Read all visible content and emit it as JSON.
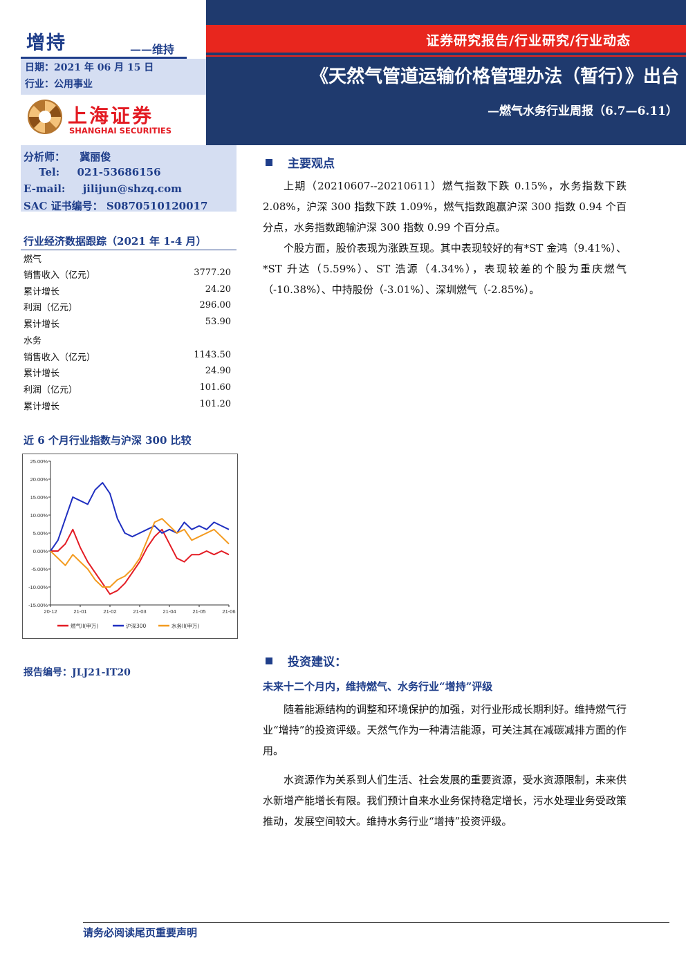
{
  "header": {
    "rating": "增持",
    "rating_action": "——维持",
    "date_line": "日期：2021 年 06 月 15 日",
    "industry_line": "行业：公用事业",
    "category": "证券研究报告/行业研究/行业动态",
    "title": "《天然气管道运输价格管理办法（暂行）》出台",
    "subtitle": "—燃气水务行业周报（6.7—6.11）"
  },
  "logo": {
    "name_cn": "上海证券",
    "name_en": "SHANGHAI SECURITIES",
    "brand_color": "#e31b23"
  },
  "analyst": {
    "label_name": "分析师：",
    "name": "冀丽俊",
    "label_tel": "Tel:",
    "tel": "021-53686156",
    "label_email": "E-mail:",
    "email": "jilijun@shzq.com",
    "label_sac": "SAC 证书编号：",
    "sac": "S0870510120017"
  },
  "econ_table": {
    "title": "行业经济数据跟踪（2021 年 1-4 月）",
    "rows": [
      {
        "label": "燃气",
        "value": ""
      },
      {
        "label": "销售收入（亿元）",
        "value": "3777.20"
      },
      {
        "label": "累计增长",
        "value": "24.20"
      },
      {
        "label": "利润（亿元）",
        "value": "296.00"
      },
      {
        "label": "累计增长",
        "value": "53.90"
      },
      {
        "label": "水务",
        "value": ""
      },
      {
        "label": "销售收入（亿元）",
        "value": "1143.50"
      },
      {
        "label": "累计增长",
        "value": "24.90"
      },
      {
        "label": "利润（亿元）",
        "value": "101.60"
      },
      {
        "label": "累计增长",
        "value": "101.20"
      }
    ]
  },
  "chart_title": "近 6 个月行业指数与沪深 300 比较",
  "chart_data": {
    "type": "line",
    "title": "",
    "xlabel": "",
    "ylabel": "",
    "ylim": [
      -15,
      25
    ],
    "y_ticks": [
      "25.00%",
      "20.00%",
      "15.00%",
      "10.00%",
      "5.00%",
      "0.00%",
      "-5.00%",
      "-10.00%",
      "-15.00%"
    ],
    "x_ticks": [
      "20-12",
      "21-01",
      "21-02",
      "21-03",
      "21-04",
      "21-05",
      "21-06"
    ],
    "x": [
      0,
      0.25,
      0.5,
      0.75,
      1,
      1.25,
      1.5,
      1.75,
      2,
      2.25,
      2.5,
      2.75,
      3,
      3.25,
      3.5,
      3.75,
      4,
      4.25,
      4.5,
      4.75,
      5,
      5.25,
      5.5,
      5.75,
      6
    ],
    "legend_position": "bottom",
    "grid": false,
    "series": [
      {
        "name": "燃气II(申万)",
        "color": "#e31b23",
        "values": [
          0,
          0,
          2,
          6,
          1,
          -3,
          -6,
          -9,
          -12,
          -11,
          -9,
          -6,
          -3,
          1,
          4,
          6,
          2,
          -2,
          -3,
          -1,
          -1,
          0,
          -1,
          0,
          -1
        ]
      },
      {
        "name": "沪深300",
        "color": "#1f2fc0",
        "values": [
          0,
          3,
          9,
          15,
          14,
          13,
          17,
          19,
          16,
          9,
          5,
          4,
          5,
          6,
          7,
          5,
          6,
          5,
          8,
          6,
          7,
          6,
          8,
          7,
          6
        ]
      },
      {
        "name": "水务II(申万)",
        "color": "#f39a1e",
        "values": [
          0,
          -2,
          -4,
          -1,
          -3,
          -5,
          -8,
          -10,
          -10,
          -8,
          -7,
          -5,
          -2,
          3,
          8,
          9,
          7,
          5,
          6,
          3,
          4,
          5,
          6,
          4,
          2
        ]
      }
    ]
  },
  "report_no": "报告编号：JLJ21-IT20",
  "main": {
    "sec1_title": "主要观点",
    "sec1_p1": "上期（20210607--20210611）燃气指数下跌 0.15%，水务指数下跌 2.08%，沪深 300 指数下跌 1.09%，燃气指数跑赢沪深 300 指数 0.94 个百分点，水务指数跑输沪深 300 指数 0.99 个百分点。",
    "sec1_p2": "个股方面，股价表现为涨跌互现。其中表现较好的有*ST 金鸿（9.41%）、*ST 升达（5.59%）、ST 浩源（4.34%），表现较差的个股为重庆燃气（-10.38%）、中持股份（-3.01%）、深圳燃气（-2.85%）。",
    "sec2_title": "投资建议：",
    "sec2_sub": "未来十二个月内，维持燃气、水务行业“增持”评级",
    "sec2_p1": "随着能源结构的调整和环境保护的加强，对行业形成长期利好。维持燃气行业“增持”的投资评级。天然气作为一种清洁能源，可关注其在减碳减排方面的作用。",
    "sec2_p2": "水资源作为关系到人们生活、社会发展的重要资源，受水资源限制，未来供水新增产能增长有限。我们预计自来水业务保持稳定增长，污水处理业务受政策推动，发展空间较大。维持水务行业“增持”投资评级。"
  },
  "footer": {
    "note": "请务必阅读尾页重要声明"
  }
}
